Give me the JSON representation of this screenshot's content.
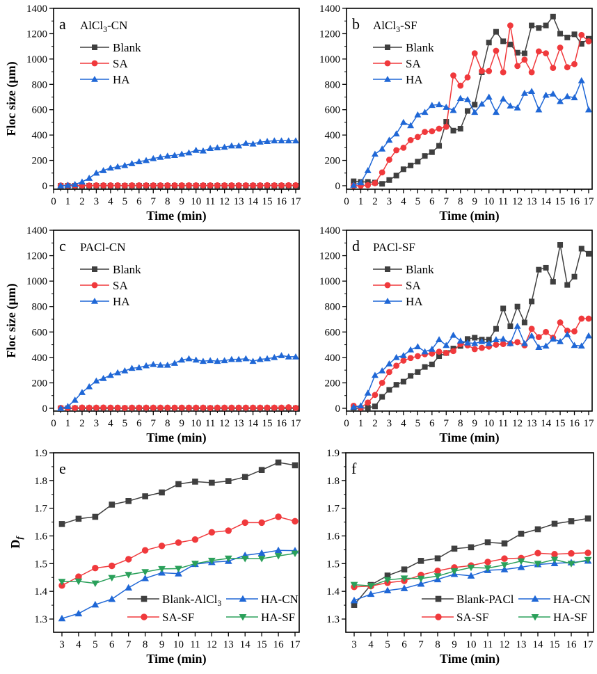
{
  "chart_data": [
    {
      "type": "line",
      "panel": "a",
      "title": "AlCl3-CN",
      "xlabel": "Time (min)",
      "ylabel": "Floc size (μm)",
      "xlim": [
        0,
        17
      ],
      "ylim": [
        0,
        1400
      ],
      "xticks": [
        0,
        1,
        2,
        3,
        4,
        5,
        6,
        7,
        8,
        9,
        10,
        11,
        12,
        13,
        14,
        15,
        16,
        17
      ],
      "yticks": [
        0,
        200,
        400,
        600,
        800,
        1000,
        1200,
        1400
      ],
      "legend_position": "top-left",
      "x": [
        0.5,
        1,
        1.5,
        2,
        2.5,
        3,
        3.5,
        4,
        4.5,
        5,
        5.5,
        6,
        6.5,
        7,
        7.5,
        8,
        8.5,
        9,
        9.5,
        10,
        10.5,
        11,
        11.5,
        12,
        12.5,
        13,
        13.5,
        14,
        14.5,
        15,
        15.5,
        16,
        16.5,
        17
      ],
      "series": [
        {
          "name": "Blank",
          "color": "#3f3f3f",
          "marker": "square",
          "values": [
            0,
            0,
            0,
            0,
            0,
            0,
            0,
            0,
            0,
            0,
            0,
            0,
            0,
            0,
            0,
            0,
            0,
            0,
            0,
            0,
            0,
            0,
            0,
            0,
            0,
            0,
            0,
            0,
            0,
            0,
            0,
            0,
            0,
            0
          ]
        },
        {
          "name": "SA",
          "color": "#f0393c",
          "marker": "circle",
          "values": [
            2,
            2,
            2,
            2,
            2,
            3,
            3,
            3,
            3,
            2,
            3,
            3,
            3,
            3,
            3,
            3,
            3,
            3,
            3,
            3,
            3,
            3,
            3,
            3,
            3,
            3,
            3,
            3,
            3,
            4,
            3,
            3,
            4,
            4
          ]
        },
        {
          "name": "HA",
          "color": "#1f67d6",
          "marker": "triangle-up",
          "values": [
            0,
            5,
            10,
            30,
            60,
            100,
            120,
            140,
            150,
            160,
            175,
            190,
            200,
            215,
            225,
            235,
            240,
            250,
            260,
            280,
            275,
            295,
            300,
            305,
            315,
            315,
            335,
            330,
            345,
            350,
            355,
            355,
            355,
            355
          ]
        }
      ]
    },
    {
      "type": "line",
      "panel": "b",
      "title": "AlCl3-SF",
      "xlabel": "Time (min)",
      "ylabel": "",
      "xlim": [
        0,
        17
      ],
      "ylim": [
        0,
        1400
      ],
      "xticks": [
        0,
        1,
        2,
        3,
        4,
        5,
        6,
        7,
        8,
        9,
        10,
        11,
        12,
        13,
        14,
        15,
        16,
        17
      ],
      "yticks": [
        0,
        200,
        400,
        600,
        800,
        1000,
        1200,
        1400
      ],
      "legend_position": "top-left",
      "x": [
        0.5,
        1,
        1.5,
        2,
        2.5,
        3,
        3.5,
        4,
        4.5,
        5,
        5.5,
        6,
        6.5,
        7,
        7.5,
        8,
        8.5,
        9,
        9.5,
        10,
        10.5,
        11,
        11.5,
        12,
        12.5,
        13,
        13.5,
        14,
        14.5,
        15,
        15.5,
        16,
        16.5,
        17
      ],
      "series": [
        {
          "name": "Blank",
          "color": "#3f3f3f",
          "marker": "square",
          "values": [
            35,
            30,
            30,
            25,
            15,
            45,
            80,
            130,
            160,
            190,
            235,
            265,
            315,
            505,
            435,
            450,
            590,
            640,
            895,
            1130,
            1215,
            1140,
            1115,
            1050,
            1045,
            1265,
            1245,
            1265,
            1335,
            1200,
            1170,
            1195,
            1120,
            1160
          ]
        },
        {
          "name": "SA",
          "color": "#f0393c",
          "marker": "circle",
          "values": [
            0,
            0,
            5,
            20,
            105,
            205,
            280,
            300,
            360,
            385,
            425,
            430,
            450,
            465,
            870,
            790,
            855,
            1045,
            905,
            905,
            1065,
            895,
            1265,
            945,
            995,
            895,
            1060,
            1045,
            930,
            1090,
            935,
            960,
            1190,
            1140
          ]
        },
        {
          "name": "HA",
          "color": "#1f67d6",
          "marker": "triangle-up",
          "values": [
            5,
            25,
            120,
            250,
            290,
            360,
            410,
            500,
            475,
            560,
            580,
            635,
            640,
            620,
            595,
            690,
            680,
            580,
            645,
            700,
            580,
            685,
            630,
            615,
            730,
            745,
            600,
            715,
            725,
            665,
            705,
            695,
            830,
            600
          ]
        }
      ]
    },
    {
      "type": "line",
      "panel": "c",
      "title": "PACl-CN",
      "xlabel": "Time (min)",
      "ylabel": "Floc size (μm)",
      "xlim": [
        0,
        17
      ],
      "ylim": [
        0,
        1400
      ],
      "xticks": [
        0,
        1,
        2,
        3,
        4,
        5,
        6,
        7,
        8,
        9,
        10,
        11,
        12,
        13,
        14,
        15,
        16,
        17
      ],
      "yticks": [
        0,
        200,
        400,
        600,
        800,
        1000,
        1200,
        1400
      ],
      "legend_position": "top-left",
      "x": [
        0.5,
        1,
        1.5,
        2,
        2.5,
        3,
        3.5,
        4,
        4.5,
        5,
        5.5,
        6,
        6.5,
        7,
        7.5,
        8,
        8.5,
        9,
        9.5,
        10,
        10.5,
        11,
        11.5,
        12,
        12.5,
        13,
        13.5,
        14,
        14.5,
        15,
        15.5,
        16,
        16.5,
        17
      ],
      "series": [
        {
          "name": "Blank",
          "color": "#3f3f3f",
          "marker": "square",
          "values": [
            0,
            0,
            0,
            0,
            0,
            0,
            0,
            0,
            0,
            0,
            0,
            0,
            0,
            0,
            0,
            0,
            0,
            0,
            0,
            0,
            0,
            0,
            0,
            0,
            0,
            0,
            0,
            0,
            0,
            0,
            0,
            0,
            0,
            0
          ]
        },
        {
          "name": "SA",
          "color": "#f0393c",
          "marker": "circle",
          "values": [
            3,
            3,
            3,
            6,
            5,
            5,
            6,
            5,
            5,
            3,
            5,
            5,
            5,
            5,
            5,
            5,
            5,
            5,
            5,
            5,
            5,
            3,
            5,
            5,
            5,
            5,
            5,
            5,
            5,
            5,
            5,
            5,
            8,
            3
          ]
        },
        {
          "name": "HA",
          "color": "#1f67d6",
          "marker": "triangle-up",
          "values": [
            0,
            15,
            65,
            125,
            170,
            215,
            235,
            260,
            280,
            295,
            315,
            320,
            335,
            345,
            340,
            340,
            355,
            380,
            390,
            380,
            370,
            375,
            370,
            375,
            385,
            385,
            390,
            370,
            385,
            390,
            400,
            415,
            405,
            405
          ]
        }
      ]
    },
    {
      "type": "line",
      "panel": "d",
      "title": "PACl-SF",
      "xlabel": "Time (min)",
      "ylabel": "",
      "xlim": [
        0,
        17
      ],
      "ylim": [
        0,
        1400
      ],
      "xticks": [
        0,
        1,
        2,
        3,
        4,
        5,
        6,
        7,
        8,
        9,
        10,
        11,
        12,
        13,
        14,
        15,
        16,
        17
      ],
      "yticks": [
        0,
        200,
        400,
        600,
        800,
        1000,
        1200,
        1400
      ],
      "legend_position": "top-left",
      "x": [
        0.5,
        1,
        1.5,
        2,
        2.5,
        3,
        3.5,
        4,
        4.5,
        5,
        5.5,
        6,
        6.5,
        7,
        7.5,
        8,
        8.5,
        9,
        9.5,
        10,
        10.5,
        11,
        11.5,
        12,
        12.5,
        13,
        13.5,
        14,
        14.5,
        15,
        15.5,
        16,
        16.5,
        17
      ],
      "series": [
        {
          "name": "Blank",
          "color": "#3f3f3f",
          "marker": "square",
          "values": [
            0,
            0,
            5,
            15,
            90,
            145,
            185,
            210,
            255,
            285,
            325,
            345,
            410,
            435,
            470,
            490,
            545,
            555,
            540,
            540,
            625,
            785,
            645,
            800,
            675,
            840,
            1090,
            1105,
            995,
            1285,
            970,
            1035,
            1255,
            1215
          ]
        },
        {
          "name": "SA",
          "color": "#f0393c",
          "marker": "circle",
          "values": [
            20,
            5,
            45,
            105,
            200,
            285,
            335,
            375,
            395,
            410,
            425,
            430,
            445,
            435,
            450,
            505,
            495,
            465,
            475,
            485,
            500,
            505,
            510,
            520,
            495,
            625,
            560,
            600,
            555,
            675,
            610,
            605,
            705,
            705
          ]
        },
        {
          "name": "HA",
          "color": "#1f67d6",
          "marker": "triangle-up",
          "values": [
            10,
            20,
            120,
            260,
            295,
            350,
            400,
            415,
            460,
            485,
            445,
            465,
            540,
            495,
            575,
            530,
            515,
            510,
            525,
            510,
            540,
            545,
            510,
            645,
            510,
            570,
            480,
            490,
            545,
            525,
            580,
            495,
            490,
            570
          ]
        }
      ]
    },
    {
      "type": "line",
      "panel": "e",
      "title": "",
      "xlabel": "Time (min)",
      "ylabel": "Df",
      "xlim": [
        3,
        17
      ],
      "ylim": [
        1.25,
        1.9
      ],
      "xticks": [
        3,
        4,
        5,
        6,
        7,
        8,
        9,
        10,
        11,
        12,
        13,
        14,
        15,
        16,
        17
      ],
      "yticks": [
        1.3,
        1.4,
        1.5,
        1.6,
        1.7,
        1.8,
        1.9
      ],
      "legend_position": "bottom-right",
      "x": [
        3,
        4,
        5,
        6,
        7,
        8,
        9,
        10,
        11,
        12,
        13,
        14,
        15,
        16,
        17
      ],
      "series": [
        {
          "name": "Blank-AlCl3",
          "color": "#3f3f3f",
          "marker": "square",
          "values": [
            1.643,
            1.662,
            1.669,
            1.713,
            1.726,
            1.743,
            1.757,
            1.787,
            1.796,
            1.792,
            1.798,
            1.813,
            1.838,
            1.865,
            1.855
          ]
        },
        {
          "name": "HA-CN",
          "color": "#1f67d6",
          "marker": "triangle-up",
          "values": [
            1.302,
            1.32,
            1.352,
            1.372,
            1.413,
            1.447,
            1.467,
            1.464,
            1.498,
            1.505,
            1.509,
            1.53,
            1.538,
            1.548,
            1.547
          ]
        },
        {
          "name": "SA-SF",
          "color": "#f0393c",
          "marker": "circle",
          "values": [
            1.421,
            1.453,
            1.484,
            1.492,
            1.516,
            1.548,
            1.564,
            1.576,
            1.587,
            1.613,
            1.619,
            1.648,
            1.648,
            1.669,
            1.653
          ]
        },
        {
          "name": "HA-SF",
          "color": "#2aa05a",
          "marker": "triangle-down",
          "values": [
            1.435,
            1.436,
            1.429,
            1.449,
            1.46,
            1.47,
            1.481,
            1.482,
            1.5,
            1.511,
            1.519,
            1.518,
            1.518,
            1.528,
            1.537
          ]
        }
      ]
    },
    {
      "type": "line",
      "panel": "f",
      "title": "",
      "xlabel": "Time (min)",
      "ylabel": "",
      "xlim": [
        3,
        17
      ],
      "ylim": [
        1.25,
        1.9
      ],
      "xticks": [
        3,
        4,
        5,
        6,
        7,
        8,
        9,
        10,
        11,
        12,
        13,
        14,
        15,
        16,
        17
      ],
      "yticks": [
        1.3,
        1.4,
        1.5,
        1.6,
        1.7,
        1.8,
        1.9
      ],
      "legend_position": "bottom-right",
      "x": [
        3,
        4,
        5,
        6,
        7,
        8,
        9,
        10,
        11,
        12,
        13,
        14,
        15,
        16,
        17
      ],
      "series": [
        {
          "name": "Blank-PACl",
          "color": "#3f3f3f",
          "marker": "square",
          "values": [
            1.351,
            1.423,
            1.457,
            1.479,
            1.51,
            1.519,
            1.554,
            1.559,
            1.577,
            1.573,
            1.608,
            1.624,
            1.644,
            1.653,
            1.663
          ]
        },
        {
          "name": "HA-CN",
          "color": "#1f67d6",
          "marker": "triangle-up",
          "values": [
            1.367,
            1.39,
            1.403,
            1.411,
            1.427,
            1.443,
            1.462,
            1.456,
            1.476,
            1.479,
            1.487,
            1.497,
            1.501,
            1.504,
            1.51
          ]
        },
        {
          "name": "SA-SF",
          "color": "#f0393c",
          "marker": "circle",
          "values": [
            1.416,
            1.419,
            1.431,
            1.438,
            1.459,
            1.474,
            1.486,
            1.493,
            1.506,
            1.518,
            1.52,
            1.538,
            1.534,
            1.537,
            1.539
          ]
        },
        {
          "name": "HA-SF",
          "color": "#2aa05a",
          "marker": "triangle-down",
          "values": [
            1.424,
            1.42,
            1.441,
            1.447,
            1.446,
            1.455,
            1.473,
            1.486,
            1.484,
            1.495,
            1.509,
            1.5,
            1.515,
            1.5,
            1.514
          ]
        }
      ]
    }
  ],
  "labels": {
    "xlabel": "Time (min)",
    "ylabel_floc": "Floc size (μm)",
    "ylabel_df_main": "D",
    "ylabel_df_sub": "f",
    "panels": {
      "a": {
        "letter": "a",
        "title_main": "AlCl",
        "title_sub": "3",
        "title_rest": "-CN"
      },
      "b": {
        "letter": "b",
        "title_main": "AlCl",
        "title_sub": "3",
        "title_rest": "-SF"
      },
      "c": {
        "letter": "c",
        "title_main": "PACl-CN",
        "title_sub": "",
        "title_rest": ""
      },
      "d": {
        "letter": "d",
        "title_main": "PACl-SF",
        "title_sub": "",
        "title_rest": ""
      },
      "e": {
        "letter": "e"
      },
      "f": {
        "letter": "f"
      }
    },
    "legend_e": [
      "Blank-AlCl",
      "3",
      "HA-CN",
      "SA-SF",
      "HA-SF"
    ],
    "legend_f": [
      "Blank-PACl",
      "HA-CN",
      "SA-SF",
      "HA-SF"
    ]
  }
}
